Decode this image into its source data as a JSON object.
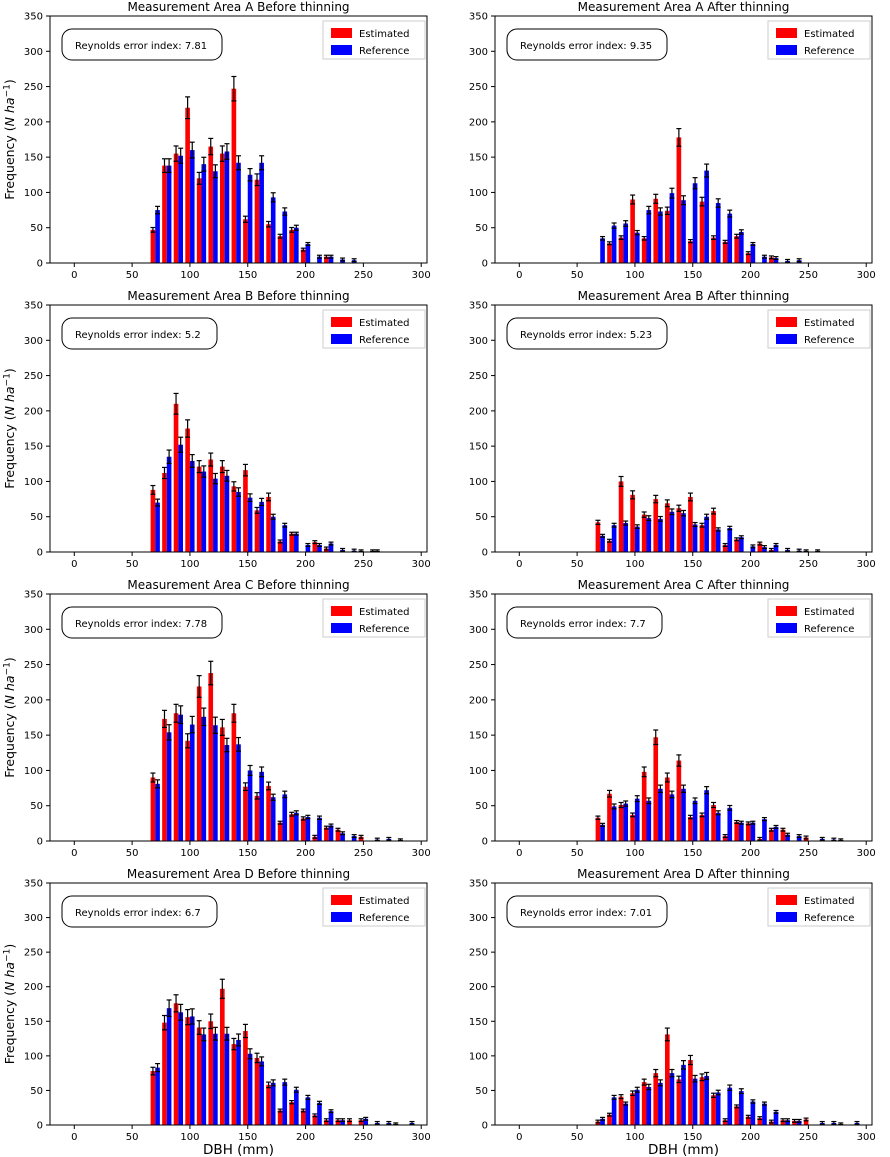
{
  "figure": {
    "background": "#ffffff",
    "axes": {
      "xlabel": "DBH (mm)",
      "ylabel": "Frequency (N ha⁻¹)",
      "ylabel_parts": {
        "prefix": "Frequency (",
        "italic": "N ha",
        "sup": "−1",
        "suffix": ")"
      },
      "xlim": [
        -21,
        305
      ],
      "ylim": [
        0,
        350
      ],
      "xticks": [
        0,
        50,
        100,
        150,
        200,
        250,
        300
      ],
      "yticks": [
        0,
        50,
        100,
        150,
        200,
        250,
        300,
        350
      ]
    },
    "legend": {
      "items": [
        {
          "label": "Estimated",
          "color": "#ff0000"
        },
        {
          "label": "Reference",
          "color": "#0000ff"
        }
      ],
      "edge_color": "#cccccc",
      "position": "upper-right"
    },
    "error_model": {
      "type": "fraction-of-value",
      "fraction": 0.07,
      "min": 2
    },
    "colors": {
      "estimated": "#ff0000",
      "reference": "#0000ff",
      "error_bar": "#000000",
      "axis": "#000000"
    }
  },
  "chart_data": [
    {
      "type": "bar",
      "title": "Measurement Area A Before thinning",
      "annotation": "Reynolds error index: 7.81",
      "x": [
        70,
        80,
        90,
        100,
        110,
        120,
        130,
        140,
        150,
        160,
        170,
        180,
        190,
        200,
        210,
        220,
        230,
        240
      ],
      "series": [
        {
          "name": "Estimated",
          "color": "#ff0000",
          "values": [
            47,
            138,
            155,
            220,
            120,
            165,
            155,
            247,
            62,
            118,
            55,
            38,
            47,
            19,
            0,
            9,
            0,
            0
          ]
        },
        {
          "name": "Reference",
          "color": "#0000ff",
          "values": [
            75,
            138,
            152,
            160,
            140,
            130,
            158,
            142,
            125,
            142,
            93,
            73,
            50,
            27,
            9,
            9,
            5,
            4
          ]
        }
      ]
    },
    {
      "type": "bar",
      "title": "Measurement Area A After thinning",
      "annotation": "Reynolds error index: 9.35",
      "x": [
        70,
        80,
        90,
        100,
        110,
        120,
        130,
        140,
        150,
        160,
        170,
        180,
        190,
        200,
        210,
        220,
        230,
        240
      ],
      "series": [
        {
          "name": "Estimated",
          "color": "#ff0000",
          "values": [
            0,
            28,
            36,
            90,
            35,
            91,
            74,
            178,
            31,
            87,
            36,
            30,
            38,
            14,
            0,
            8,
            0,
            0
          ]
        },
        {
          "name": "Reference",
          "color": "#0000ff",
          "values": [
            35,
            53,
            56,
            43,
            75,
            73,
            99,
            89,
            113,
            131,
            85,
            70,
            44,
            27,
            9,
            7,
            3,
            4
          ]
        }
      ]
    },
    {
      "type": "bar",
      "title": "Measurement Area B Before thinning",
      "annotation": "Reynolds error index: 5.2",
      "x": [
        70,
        80,
        90,
        100,
        110,
        120,
        130,
        140,
        150,
        160,
        170,
        180,
        190,
        200,
        210,
        220,
        230,
        240,
        250,
        260
      ],
      "series": [
        {
          "name": "Estimated",
          "color": "#ff0000",
          "values": [
            88,
            112,
            210,
            175,
            121,
            131,
            121,
            93,
            116,
            59,
            78,
            15,
            26,
            0,
            14,
            5,
            0,
            0,
            1,
            1
          ]
        },
        {
          "name": "Reference",
          "color": "#0000ff",
          "values": [
            70,
            135,
            152,
            129,
            114,
            104,
            108,
            85,
            77,
            71,
            50,
            38,
            26,
            10,
            10,
            12,
            3,
            2,
            0,
            1
          ]
        }
      ]
    },
    {
      "type": "bar",
      "title": "Measurement Area B After thinning",
      "annotation": "Reynolds error index: 5.23",
      "x": [
        70,
        80,
        90,
        100,
        110,
        120,
        130,
        140,
        150,
        160,
        170,
        180,
        190,
        200,
        210,
        220,
        230,
        240,
        250,
        260
      ],
      "series": [
        {
          "name": "Estimated",
          "color": "#ff0000",
          "values": [
            42,
            16,
            100,
            81,
            53,
            75,
            69,
            62,
            78,
            38,
            58,
            10,
            18,
            0,
            12,
            3,
            0,
            0,
            1,
            1
          ]
        },
        {
          "name": "Reference",
          "color": "#0000ff",
          "values": [
            23,
            38,
            41,
            36,
            48,
            47,
            57,
            55,
            39,
            50,
            32,
            34,
            21,
            8,
            7,
            10,
            3,
            2,
            0,
            0
          ]
        }
      ]
    },
    {
      "type": "bar",
      "title": "Measurement Area C Before thinning",
      "annotation": "Reynolds error index: 7.78",
      "x": [
        70,
        80,
        90,
        100,
        110,
        120,
        130,
        140,
        150,
        160,
        170,
        180,
        190,
        200,
        210,
        220,
        230,
        240,
        250,
        260,
        270,
        280
      ],
      "series": [
        {
          "name": "Estimated",
          "color": "#ff0000",
          "values": [
            90,
            173,
            181,
            142,
            219,
            238,
            161,
            181,
            77,
            64,
            78,
            26,
            38,
            32,
            6,
            19,
            16,
            0,
            6,
            0,
            0,
            0
          ]
        },
        {
          "name": "Reference",
          "color": "#0000ff",
          "values": [
            81,
            154,
            179,
            165,
            176,
            164,
            136,
            137,
            100,
            98,
            62,
            66,
            40,
            34,
            33,
            22,
            11,
            7,
            0,
            2,
            3,
            1
          ]
        }
      ]
    },
    {
      "type": "bar",
      "title": "Measurement Area C After thinning",
      "annotation": "Reynolds error index: 7.7",
      "x": [
        70,
        80,
        90,
        100,
        110,
        120,
        130,
        140,
        150,
        160,
        170,
        180,
        190,
        200,
        210,
        220,
        230,
        240,
        250,
        260,
        270,
        280
      ],
      "series": [
        {
          "name": "Estimated",
          "color": "#ff0000",
          "values": [
            33,
            67,
            51,
            37,
            98,
            147,
            90,
            114,
            34,
            37,
            51,
            7,
            27,
            25,
            3,
            16,
            16,
            0,
            5,
            0,
            0,
            1
          ]
        },
        {
          "name": "Reference",
          "color": "#0000ff",
          "values": [
            23,
            49,
            53,
            60,
            57,
            74,
            66,
            74,
            57,
            72,
            40,
            47,
            26,
            26,
            31,
            20,
            9,
            7,
            0,
            3,
            2,
            0
          ]
        }
      ]
    },
    {
      "type": "bar",
      "title": "Measurement Area D Before thinning",
      "annotation": "Reynolds error index: 6.7",
      "x": [
        70,
        80,
        90,
        100,
        110,
        120,
        130,
        140,
        150,
        160,
        170,
        180,
        190,
        200,
        210,
        220,
        230,
        240,
        250,
        260,
        270,
        280,
        290
      ],
      "series": [
        {
          "name": "Estimated",
          "color": "#ff0000",
          "values": [
            78,
            148,
            176,
            156,
            141,
            150,
            197,
            117,
            136,
            97,
            58,
            21,
            33,
            21,
            14,
            7,
            7,
            7,
            7,
            0,
            0,
            1,
            0
          ]
        },
        {
          "name": "Reference",
          "color": "#0000ff",
          "values": [
            83,
            169,
            163,
            157,
            131,
            132,
            132,
            123,
            103,
            92,
            61,
            62,
            51,
            40,
            32,
            20,
            7,
            0,
            9,
            3,
            3,
            0,
            3
          ]
        }
      ]
    },
    {
      "type": "bar",
      "title": "Measurement Area D After thinning",
      "annotation": "Reynolds error index: 7.01",
      "x": [
        70,
        80,
        90,
        100,
        110,
        120,
        130,
        140,
        150,
        160,
        170,
        180,
        190,
        200,
        210,
        220,
        230,
        240,
        250,
        260,
        270,
        280,
        290
      ],
      "series": [
        {
          "name": "Estimated",
          "color": "#ff0000",
          "values": [
            5,
            15,
            41,
            46,
            62,
            75,
            131,
            66,
            94,
            69,
            43,
            7,
            27,
            12,
            10,
            5,
            7,
            6,
            8,
            0,
            0,
            1,
            0
          ]
        },
        {
          "name": "Reference",
          "color": "#0000ff",
          "values": [
            9,
            40,
            31,
            51,
            55,
            61,
            75,
            87,
            67,
            71,
            47,
            54,
            49,
            34,
            31,
            19,
            7,
            6,
            0,
            3,
            3,
            0,
            3
          ]
        }
      ]
    }
  ]
}
